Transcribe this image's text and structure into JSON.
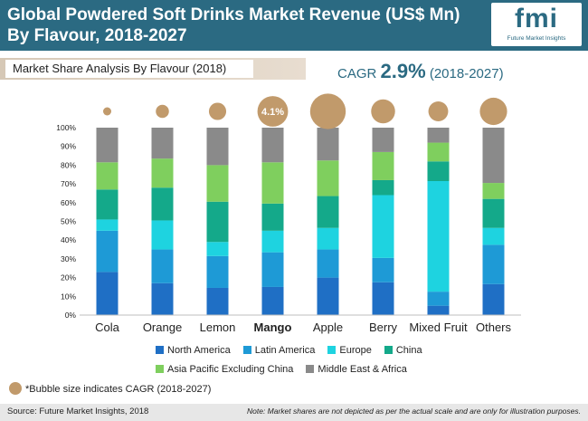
{
  "header": {
    "title_line1": "Global Powdered Soft Drinks Market Revenue (US$ Mn)",
    "title_line2": "By Flavour, 2018-2027",
    "logo_text": "fmi",
    "logo_sub": "Future Market Insights"
  },
  "subtitle": "Market Share Analysis By Flavour (2018)",
  "cagr": {
    "prefix": "CAGR",
    "value": "2.9%",
    "period": "(2018-2027)"
  },
  "bubble_note": "*Bubble size indicates CAGR (2018-2027)",
  "footer": {
    "source": "Source: Future Market Insights, 2018",
    "note": "Note: Market shares are not depicted as per the actual scale and are only for illustration purposes."
  },
  "colors": {
    "North America": "#1f6fc5",
    "Latin America": "#1e9ad6",
    "Europe": "#1ed3e0",
    "China": "#14a98a",
    "Asia Pacific Excluding China": "#7fcf5e",
    "Middle East & Africa": "#8a8a8a",
    "bubble": "#c19a6b"
  },
  "chart_data": {
    "type": "bar",
    "stacked": true,
    "categories": [
      "Cola",
      "Orange",
      "Lemon",
      "Mango",
      "Apple",
      "Berry",
      "Mixed Fruit",
      "Others"
    ],
    "highlight_category": "Mango",
    "yticks": [
      "0%",
      "10%",
      "20%",
      "30%",
      "40%",
      "50%",
      "60%",
      "70%",
      "80%",
      "90%",
      "100%"
    ],
    "ylim": [
      0,
      100
    ],
    "series": [
      {
        "name": "North America",
        "values": [
          23,
          17,
          14.5,
          15,
          20,
          17.5,
          5,
          16.5
        ]
      },
      {
        "name": "Latin America",
        "values": [
          22,
          18,
          17,
          18.5,
          15,
          13,
          7.5,
          21
        ]
      },
      {
        "name": "Europe",
        "values": [
          6,
          15.5,
          7.5,
          11.5,
          11.5,
          33.5,
          59,
          9
        ]
      },
      {
        "name": "China",
        "values": [
          16,
          17.5,
          21.5,
          14.5,
          17,
          8,
          10.5,
          15.5
        ]
      },
      {
        "name": "Asia Pacific Excluding China",
        "values": [
          14.5,
          15.5,
          19.5,
          22,
          19,
          15,
          10,
          8.5
        ]
      },
      {
        "name": "Middle East & Africa",
        "values": [
          18.5,
          16.5,
          20,
          18.5,
          17.5,
          13,
          8,
          29.5
        ]
      }
    ],
    "bubble_cagr_relative": [
      1,
      1.6,
      2.1,
      3.7,
      4.3,
      2.9,
      2.4,
      3.3
    ],
    "bubble_labels": [
      "",
      "",
      "",
      "4.1%",
      "",
      "",
      "",
      ""
    ],
    "legend_rows": [
      [
        "North America",
        "Latin America",
        "Europe",
        "China"
      ],
      [
        "Asia Pacific Excluding China",
        "Middle East & Africa"
      ]
    ]
  }
}
